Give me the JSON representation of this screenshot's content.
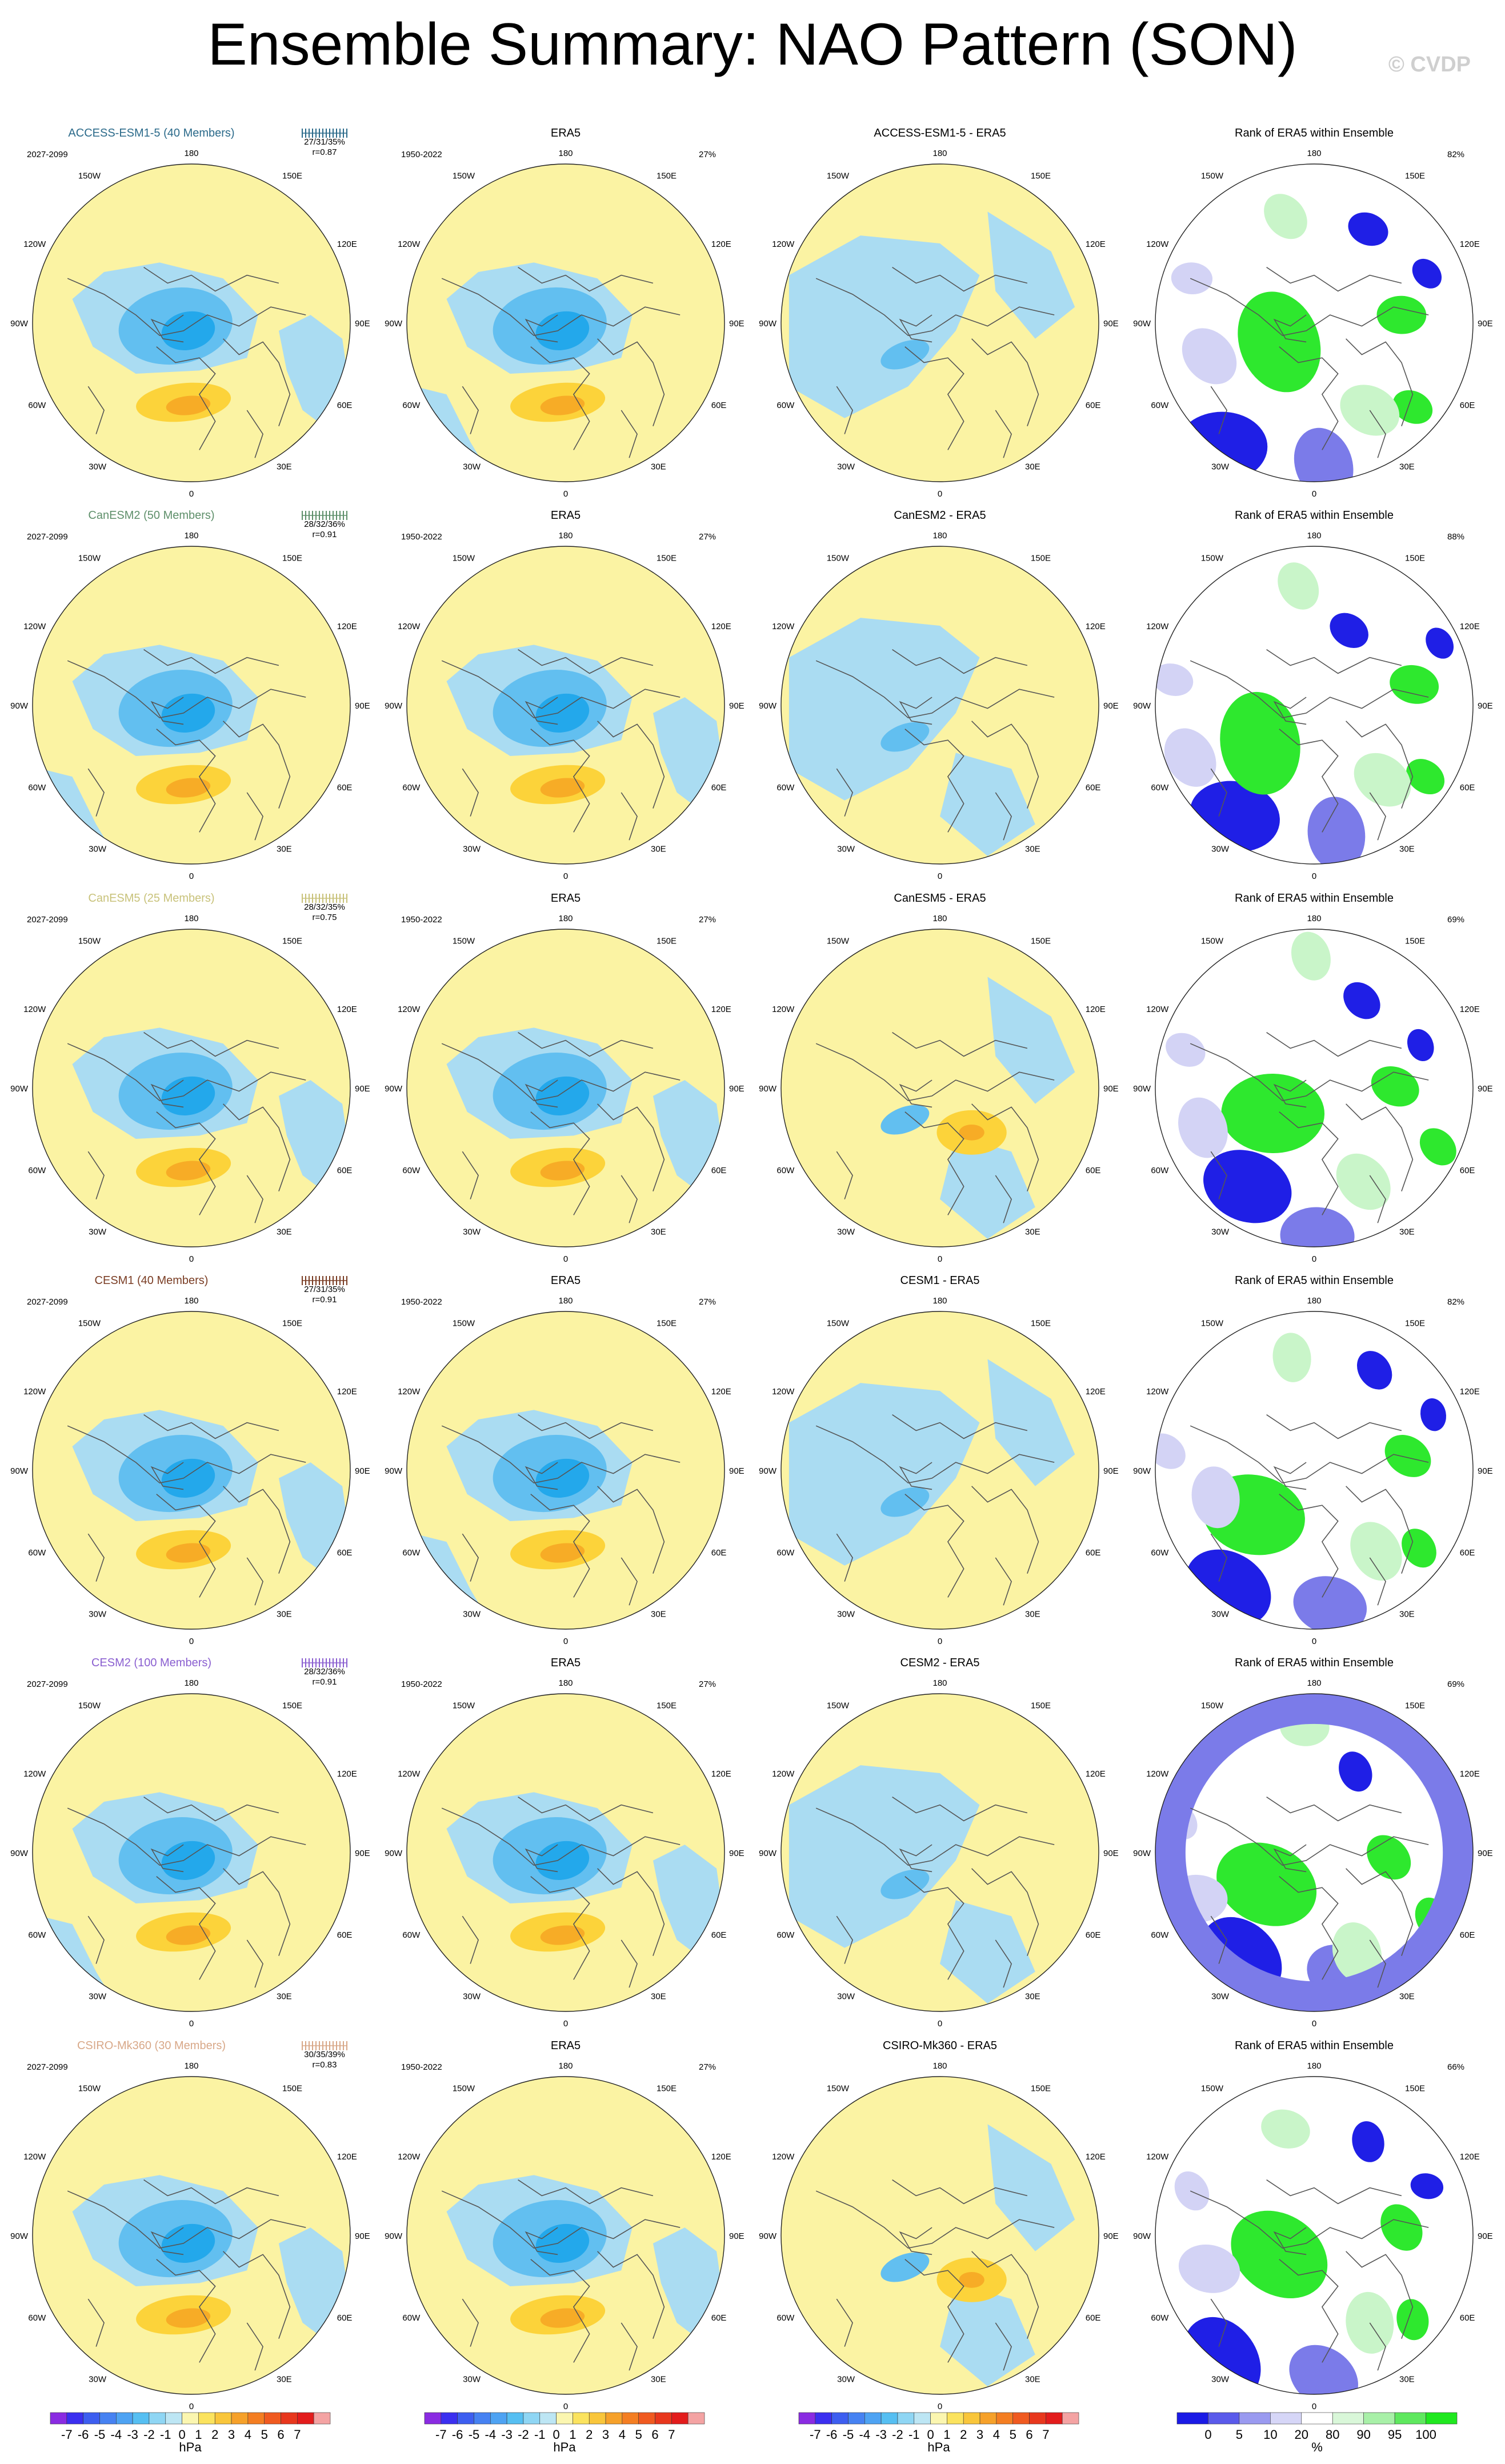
{
  "title": "Ensemble Summary: NAO Pattern (SON)",
  "watermark": "© CVDP",
  "lon_labels": [
    "180",
    "150E",
    "120E",
    "90E",
    "60E",
    "30E",
    "0",
    "30W",
    "60W",
    "90W",
    "120W",
    "150W"
  ],
  "panel_titles": {
    "obs": "ERA5",
    "rank": "Rank of ERA5 within Ensemble"
  },
  "obs_period": "1950-2022",
  "obs_pct": "27%",
  "colors": {
    "yellow": "#fbf3a3",
    "light_blue": "#aadcf2",
    "mid_blue": "#62bff0",
    "deep_blue": "#23a8eb",
    "orange_light": "#fcd33a",
    "orange_mid": "#f7ac26",
    "orange_deep": "#ee8019",
    "rank_blue_dark": "#1f1fe6",
    "rank_blue_mid": "#7b7be9",
    "rank_blue_light": "#d3d3f5",
    "rank_green": "#2ee82e",
    "rank_green_light": "#c9f5c9"
  },
  "rows": [
    {
      "model": "ACCESS-ESM1-5 (40 Members)",
      "color": "#2b6a8a",
      "period": "2027-2099",
      "stats1": "27/31/35%",
      "stats2": "r=0.87",
      "diff_title": "ACCESS-ESM1-5 - ERA5",
      "rank_pct": "82%"
    },
    {
      "model": "CanESM2 (50 Members)",
      "color": "#5e8f6a",
      "period": "2027-2099",
      "stats1": "28/32/36%",
      "stats2": "r=0.91",
      "diff_title": "CanESM2 - ERA5",
      "rank_pct": "88%"
    },
    {
      "model": "CanESM5 (25 Members)",
      "color": "#c8c27a",
      "period": "2027-2099",
      "stats1": "28/32/35%",
      "stats2": "r=0.75",
      "diff_title": "CanESM5 - ERA5",
      "rank_pct": "69%"
    },
    {
      "model": "CESM1 (40 Members)",
      "color": "#7a3d24",
      "period": "2027-2099",
      "stats1": "27/31/35%",
      "stats2": "r=0.91",
      "diff_title": "CESM1 - ERA5",
      "rank_pct": "82%"
    },
    {
      "model": "CESM2 (100 Members)",
      "color": "#8a5fd0",
      "period": "2027-2099",
      "stats1": "28/32/36%",
      "stats2": "r=0.91",
      "diff_title": "CESM2 - ERA5",
      "rank_pct": "69%"
    },
    {
      "model": "CSIRO-Mk360 (30 Members)",
      "color": "#d8a888",
      "period": "2027-2099",
      "stats1": "30/35/39%",
      "stats2": "r=0.83",
      "diff_title": "CSIRO-Mk360 - ERA5",
      "rank_pct": "66%"
    }
  ],
  "colorbar_hpa": {
    "labels": [
      "-7",
      "-6",
      "-5",
      "-4",
      "-3",
      "-2",
      "-1",
      "0",
      "1",
      "2",
      "3",
      "4",
      "5",
      "6",
      "7"
    ],
    "colors": [
      "#8a2be2",
      "#3b2ff0",
      "#3d5ef0",
      "#4682f2",
      "#4ea3f3",
      "#56bff2",
      "#8fd6f4",
      "#bde6f4",
      "#fbf6b0",
      "#fbe35e",
      "#f9c63b",
      "#f6a12a",
      "#f47e22",
      "#f05a20",
      "#e8371d",
      "#e31c1c",
      "#f4a3a3"
    ],
    "unit": "hPa"
  },
  "colorbar_rank": {
    "labels": [
      "0",
      "5",
      "10",
      "20",
      "80",
      "90",
      "95",
      "100"
    ],
    "colors": [
      "#1a1ae6",
      "#5a5aeb",
      "#9a9af0",
      "#d6d6f7",
      "#ffffff",
      "#d9f7d9",
      "#a8f0a8",
      "#5ee85e",
      "#1fe81f"
    ],
    "unit": "%"
  }
}
